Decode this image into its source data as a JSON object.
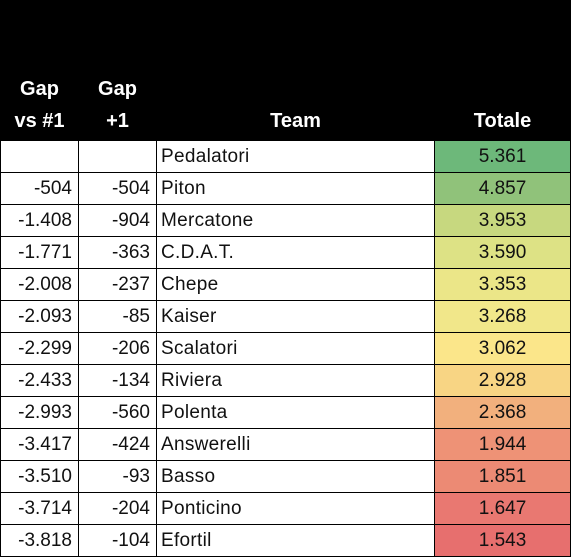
{
  "table": {
    "headers": {
      "gap_vs_first_line1": "Gap",
      "gap_vs_first_line2": "vs #1",
      "gap_prev_line1": "Gap",
      "gap_prev_line2": "+1",
      "team": "Team",
      "total": "Totale"
    },
    "rows": [
      {
        "gap_first": "",
        "gap_prev": "",
        "team": "Pedalatori",
        "total": "5.361",
        "color": "#6db87a"
      },
      {
        "gap_first": "-504",
        "gap_prev": "-504",
        "team": "Piton",
        "total": "4.857",
        "color": "#90c27a"
      },
      {
        "gap_first": "-1.408",
        "gap_prev": "-904",
        "team": "Mercatone",
        "total": "3.953",
        "color": "#c7d87f"
      },
      {
        "gap_first": "-1.771",
        "gap_prev": "-363",
        "team": "C.D.A.T.",
        "total": "3.590",
        "color": "#dde285"
      },
      {
        "gap_first": "-2.008",
        "gap_prev": "-237",
        "team": "Chepe",
        "total": "3.353",
        "color": "#ebe688"
      },
      {
        "gap_first": "-2.093",
        "gap_prev": "-85",
        "team": "Kaiser",
        "total": "3.268",
        "color": "#f1e78a"
      },
      {
        "gap_first": "-2.299",
        "gap_prev": "-206",
        "team": "Scalatori",
        "total": "3.062",
        "color": "#fbe68a"
      },
      {
        "gap_first": "-2.433",
        "gap_prev": "-134",
        "team": "Riviera",
        "total": "2.928",
        "color": "#f8d584"
      },
      {
        "gap_first": "-2.993",
        "gap_prev": "-560",
        "team": "Polenta",
        "total": "2.368",
        "color": "#f2b07d"
      },
      {
        "gap_first": "-3.417",
        "gap_prev": "-424",
        "team": "Answerelli",
        "total": "1.944",
        "color": "#ee9276"
      },
      {
        "gap_first": "-3.510",
        "gap_prev": "-93",
        "team": "Basso",
        "total": "1.851",
        "color": "#ec8a74"
      },
      {
        "gap_first": "-3.714",
        "gap_prev": "-204",
        "team": "Ponticino",
        "total": "1.647",
        "color": "#e97871"
      },
      {
        "gap_first": "-3.818",
        "gap_prev": "-104",
        "team": "Efortil",
        "total": "1.543",
        "color": "#e76f6e"
      }
    ]
  }
}
